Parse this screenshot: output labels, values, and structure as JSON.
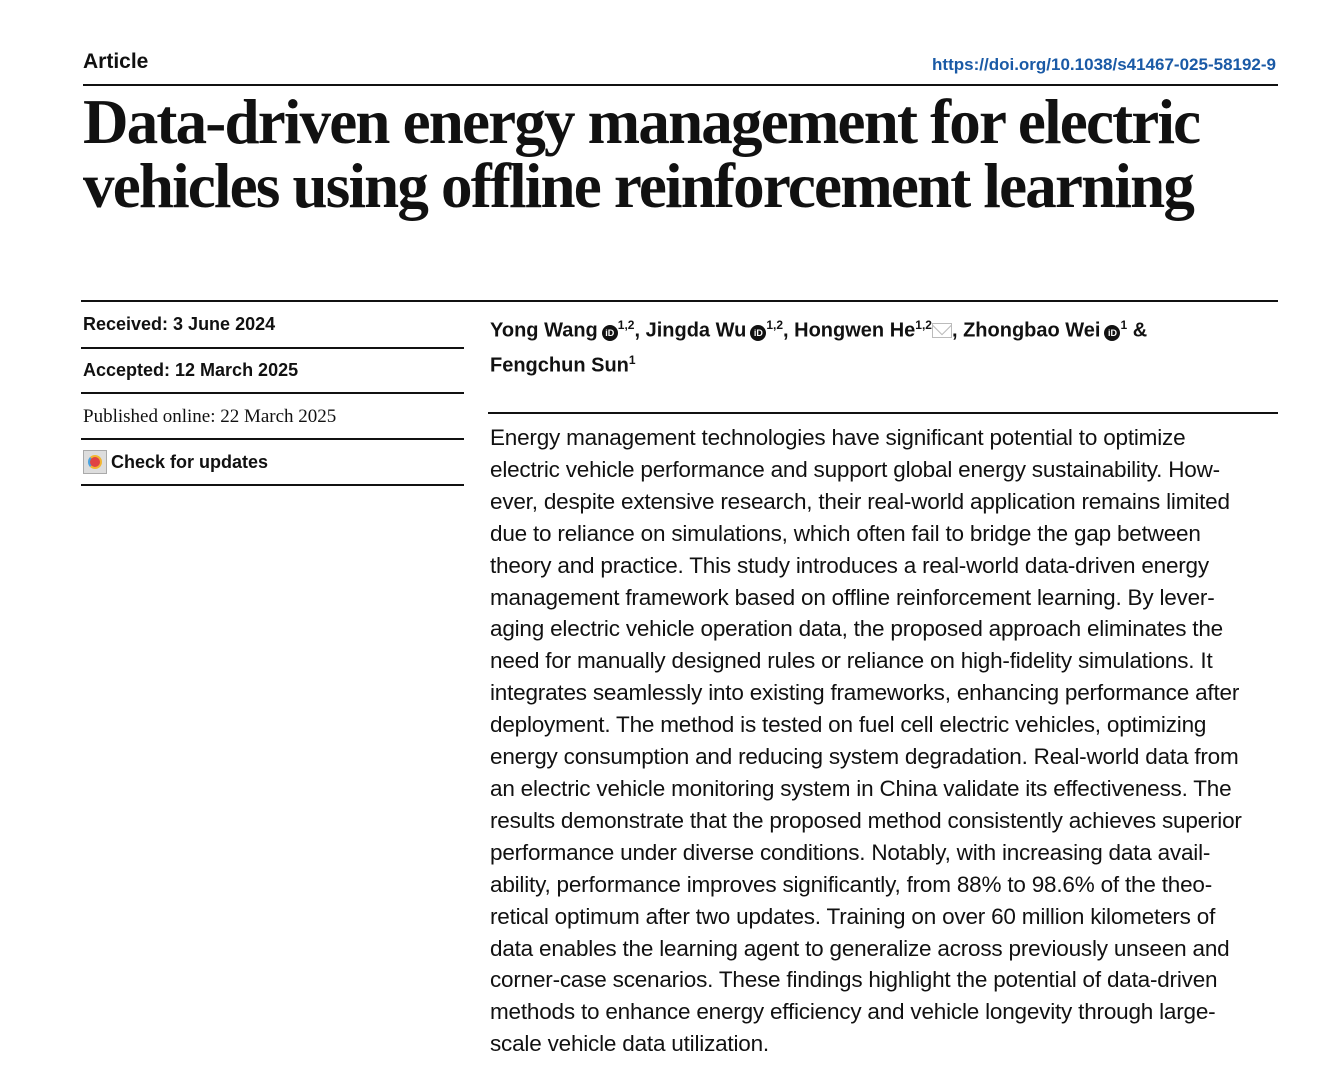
{
  "header": {
    "type": "Article",
    "doi": "https://doi.org/10.1038/s41467-025-58192-9"
  },
  "title_lines": [
    "Data-driven energy management for electric",
    "vehicles using offline reinforcement learning"
  ],
  "meta": {
    "received": "Received: 3 June 2024",
    "accepted": "Accepted: 12 March 2025",
    "published": "Published online: 22 March 2025",
    "check_updates": "Check for updates"
  },
  "authors": [
    {
      "name": "Yong Wang",
      "orcid": true,
      "aff": "1,2"
    },
    {
      "name": "Jingda Wu",
      "orcid": true,
      "aff": "1,2"
    },
    {
      "name": "Hongwen He",
      "orcid": false,
      "aff": "1,2",
      "corresponding": true
    },
    {
      "name": "Zhongbao Wei",
      "orcid": true,
      "aff": "1"
    },
    {
      "name": "Fengchun Sun",
      "orcid": false,
      "aff": "1"
    }
  ],
  "icons": {
    "orcid": "orcid-icon",
    "mail": "mail-icon",
    "check_updates": "check-for-updates-icon"
  },
  "abstract_lines": [
    "Energy management technologies have significant potential to optimize",
    "electric vehicle performance and support global energy sustainability. How-",
    "ever, despite extensive research, their real-world application remains limited",
    "due to reliance on simulations, which often fail to bridge the gap between",
    "theory and practice. This study introduces a real-world data-driven energy",
    "management framework based on offline reinforcement learning. By lever-",
    "aging electric vehicle operation data, the proposed approach eliminates the",
    "need for manually designed rules or reliance on high-fidelity simulations. It",
    "integrates seamlessly into existing frameworks, enhancing performance after",
    "deployment. The method is tested on fuel cell electric vehicles, optimizing",
    "energy consumption and reducing system degradation. Real-world data from",
    "an electric vehicle monitoring system in China validate its effectiveness. The",
    "results demonstrate that the proposed method consistently achieves superior",
    "performance under diverse conditions. Notably, with increasing data avail-",
    "ability, performance improves significantly, from 88% to 98.6% of the theo-",
    "retical optimum after two updates. Training on over 60 million kilometers of",
    "data enables the learning agent to generalize across previously unseen and",
    "corner-case scenarios. These findings highlight the potential of data-driven",
    "methods to enhance energy efficiency and vehicle longevity through large-",
    "scale vehicle data utilization."
  ]
}
